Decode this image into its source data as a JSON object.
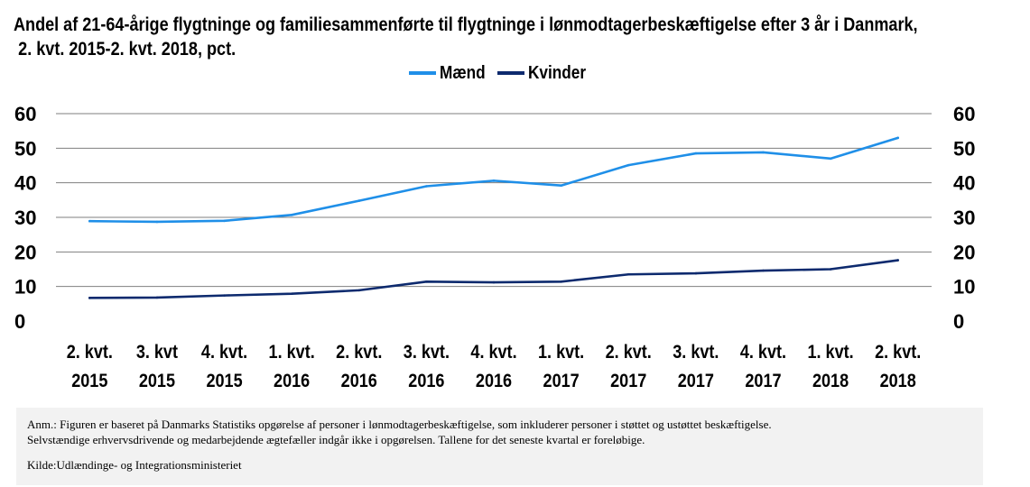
{
  "title_line1": "Andel af 21-64-årige flygtninge og familiesammenførte til flygtninge i lønmodtagerbeskæftigelse efter 3 år i Danmark,",
  "title_line2": "2. kvt. 2015-2. kvt. 2018, pct.",
  "note": {
    "anm_line1": "Anm.: Figuren er baseret på Danmarks Statistiks opgørelse af personer i lønmodtagerbeskæftigelse, som inkluderer personer i støttet og ustøttet beskæftigelse.",
    "anm_line2": "Selvstændige erhvervsdrivende og medarbejdende ægtefæller indgår ikke i opgørelsen. Tallene for det seneste kvartal er foreløbige.",
    "source": "Kilde:Udlændinge- og Integrationsministeriet"
  },
  "colors": {
    "maend": "#1f8fe8",
    "kvinder": "#0d2a6e",
    "grid": "#7f7f7f"
  },
  "chart_data": {
    "type": "line",
    "title": "Andel af 21-64-årige flygtninge og familiesammenførte til flygtninge i lønmodtagerbeskæftigelse efter 3 år i Danmark, 2. kvt. 2015-2. kvt. 2018, pct.",
    "categories": [
      [
        "2. kvt.",
        "2015"
      ],
      [
        "3. kvt",
        "2015"
      ],
      [
        "4. kvt.",
        "2015"
      ],
      [
        "1. kvt.",
        "2016"
      ],
      [
        "2. kvt.",
        "2016"
      ],
      [
        "3. kvt.",
        "2016"
      ],
      [
        "4. kvt.",
        "2016"
      ],
      [
        "1. kvt.",
        "2017"
      ],
      [
        "2. kvt.",
        "2017"
      ],
      [
        "3. kvt.",
        "2017"
      ],
      [
        "4. kvt.",
        "2017"
      ],
      [
        "1. kvt.",
        "2018"
      ],
      [
        "2. kvt.",
        "2018"
      ]
    ],
    "series": [
      {
        "name": "Mænd",
        "color": "#1f8fe8",
        "values": [
          28.9,
          28.7,
          29.0,
          30.7,
          34.8,
          39.0,
          40.6,
          39.2,
          45.1,
          48.5,
          48.8,
          47.0,
          53.0
        ]
      },
      {
        "name": "Kvinder",
        "color": "#0d2a6e",
        "values": [
          6.7,
          6.8,
          7.4,
          7.9,
          8.9,
          11.4,
          11.2,
          11.4,
          13.5,
          13.8,
          14.6,
          15.0,
          17.6
        ]
      }
    ],
    "ylim": [
      0,
      60
    ],
    "yticks": [
      0,
      10,
      20,
      30,
      40,
      50,
      60
    ],
    "secondary_y_axis": true,
    "grid": true,
    "legend": "top-center",
    "xlabel": "",
    "ylabel": ""
  }
}
